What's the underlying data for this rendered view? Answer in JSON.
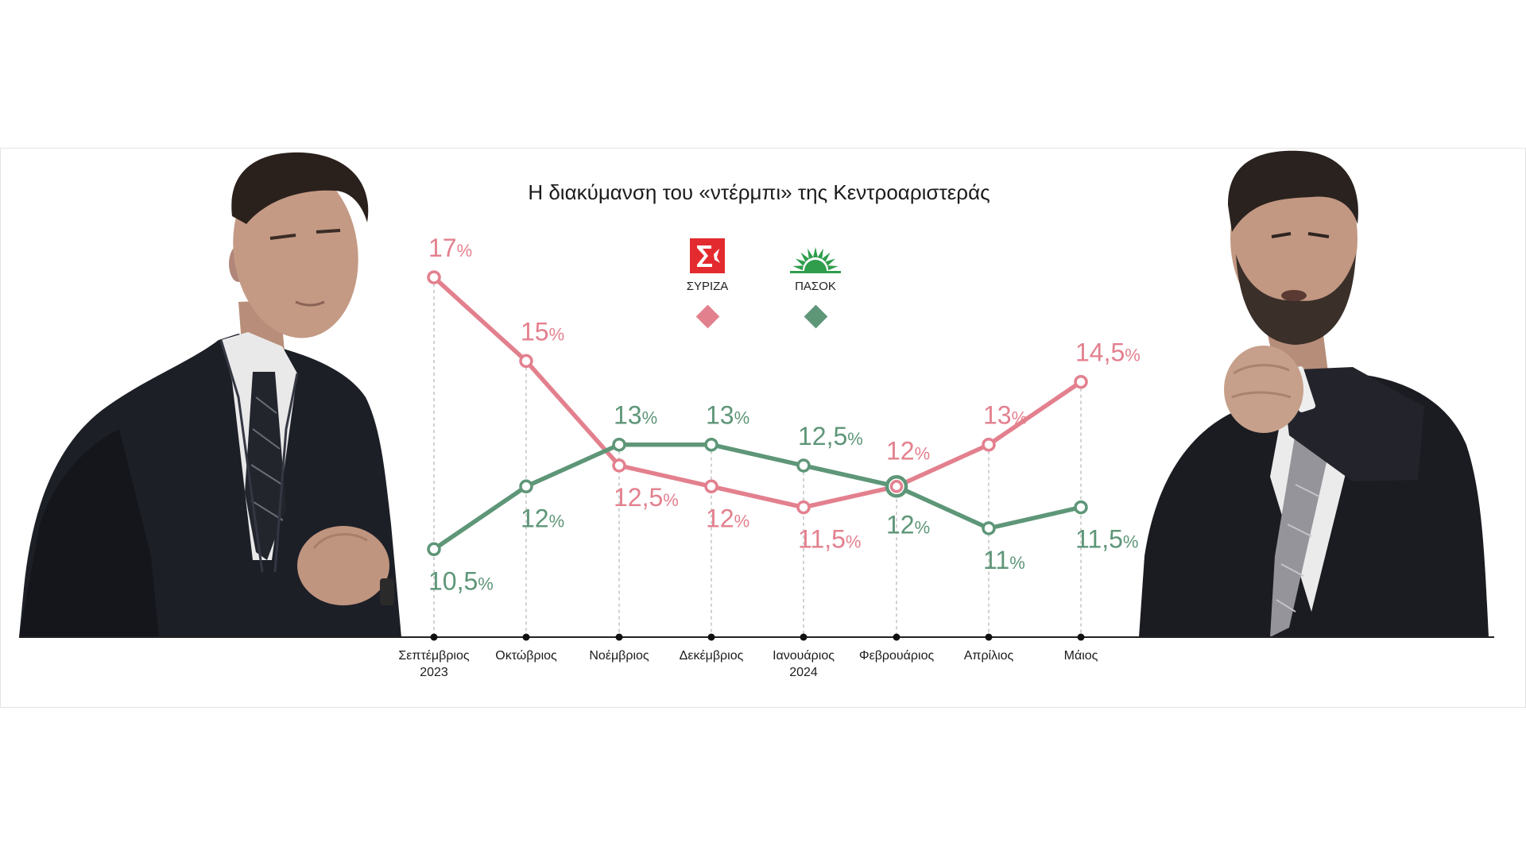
{
  "chart_data": {
    "type": "line",
    "title": "Η διακύμανση του «ντέρμπι» της Κεντροαριστεράς",
    "categories": [
      "Σεπτέμβριος\n2023",
      "Οκτώβριος",
      "Νοέμβριος",
      "Δεκέμβριος",
      "Ιανουάριος\n2024",
      "Φεβρουάριος",
      "Απρίλιος",
      "Μάιος"
    ],
    "series": [
      {
        "name": "ΣΥΡΙΖΑ",
        "color": "#e3808e",
        "values": [
          17,
          15,
          12.5,
          12,
          11.5,
          12,
          13,
          14.5
        ],
        "labels": [
          "17%",
          "15%",
          "12,5%",
          "12%",
          "11,5%",
          "12%",
          "13%",
          "14,5%"
        ]
      },
      {
        "name": "ΠΑΣΟΚ",
        "color": "#5e9678",
        "values": [
          10.5,
          12,
          13,
          13,
          12.5,
          12,
          11,
          11.5
        ],
        "labels": [
          "10,5%",
          "12%",
          "13%",
          "13%",
          "12,5%",
          "12%",
          "11%",
          "11,5%"
        ]
      }
    ],
    "grid": false,
    "legend_position": "top",
    "legend_icons": [
      "syriza-logo-icon",
      "pasok-logo-icon"
    ]
  }
}
